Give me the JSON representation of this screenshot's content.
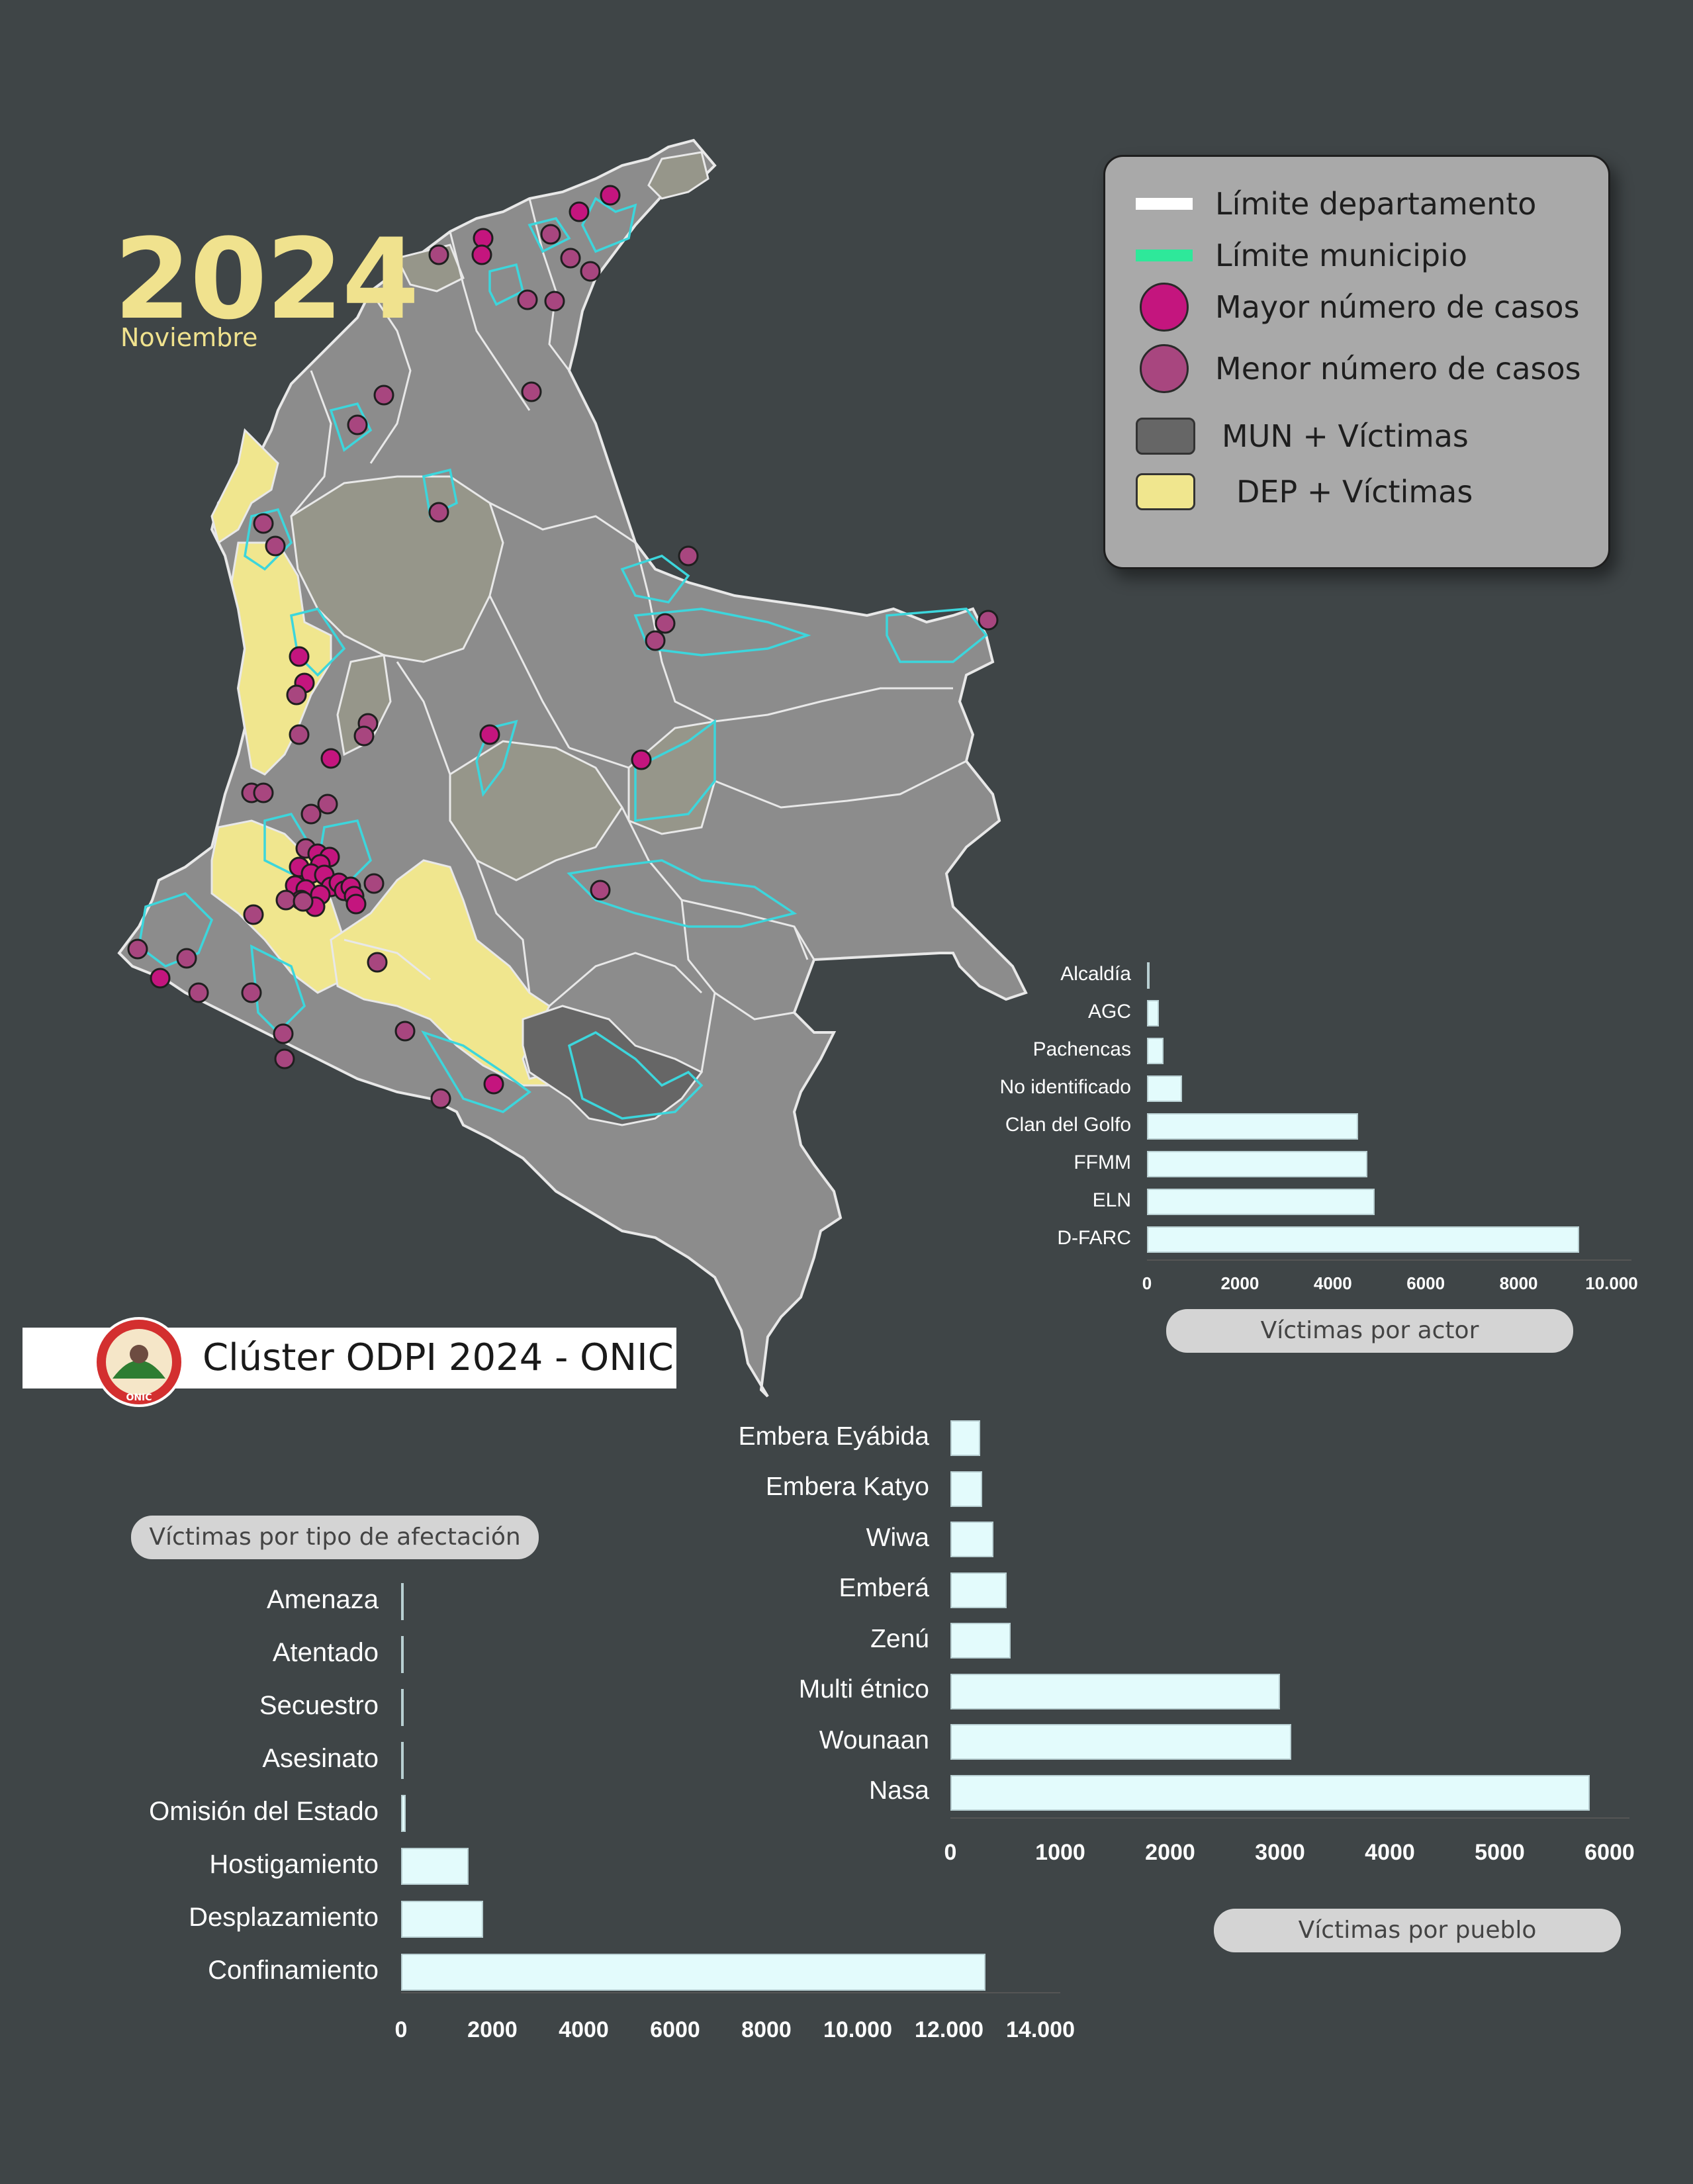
{
  "header": {
    "year": "2024",
    "month": "Noviembre"
  },
  "legend": {
    "items": [
      {
        "label": "Límite departamento",
        "color": "#ffffff",
        "kind": "line"
      },
      {
        "label": "Límite municipio",
        "color": "#2ee89a",
        "kind": "line"
      },
      {
        "label": "Mayor número de casos",
        "color": "#c4157e",
        "kind": "dot"
      },
      {
        "label": "Menor número de casos",
        "color": "#a8467f",
        "kind": "dot"
      },
      {
        "label": "MUN + Víctimas",
        "color": "#666666",
        "kind": "box"
      },
      {
        "label": "DEP + Víctimas",
        "color": "#f0e68e",
        "kind": "box"
      }
    ]
  },
  "colors": {
    "background": "#3f4547",
    "department_fill": "#8c8c8c",
    "highlight_dep": "#f0e68e",
    "highlight_mun": "#9a9a8a",
    "municipio_line": "#3cd6dc",
    "bar_fill": "#e3fbfc"
  },
  "brand": {
    "title": "Clúster ODPI 2024 - ONIC",
    "logo_text": "ONIC"
  },
  "chart_data": [
    {
      "type": "bar",
      "orientation": "horizontal",
      "caption": "Víctimas por actor",
      "categories": [
        "Alcaldía",
        "AGC",
        "Pachencas",
        "No identificado",
        "Clan del Golfo",
        "FFMM",
        "ELN",
        "D-FARC"
      ],
      "values": [
        60,
        250,
        350,
        750,
        4550,
        4750,
        4900,
        9300
      ],
      "xlim": [
        0,
        10000
      ],
      "xticks": [
        "0",
        "2000",
        "4000",
        "6000",
        "8000",
        "10.000"
      ]
    },
    {
      "type": "bar",
      "orientation": "horizontal",
      "caption": "Víctimas por pueblo",
      "categories": [
        "Embera Eyábida",
        "Embera Katyo",
        "Wiwa",
        "Emberá",
        "Zenú",
        "Multi étnico",
        "Wounaan",
        "Nasa"
      ],
      "values": [
        270,
        290,
        390,
        510,
        550,
        3000,
        3100,
        5820
      ],
      "xlim": [
        0,
        6000
      ],
      "xticks": [
        "0",
        "1000",
        "2000",
        "3000",
        "4000",
        "5000",
        "6000"
      ]
    },
    {
      "type": "bar",
      "orientation": "horizontal",
      "caption": "Víctimas por tipo de afectación",
      "categories": [
        "Amenaza",
        "Atentado",
        "Secuestro",
        "Asesinato",
        "Omisión del Estado",
        "Hostigamiento",
        "Desplazamiento",
        "Confinamiento"
      ],
      "values": [
        20,
        25,
        40,
        60,
        100,
        1480,
        1800,
        12800
      ],
      "xlim": [
        0,
        14000
      ],
      "xticks": [
        "0",
        "2000",
        "4000",
        "6000",
        "8000",
        "10.000",
        "12.000",
        "14.000"
      ]
    }
  ]
}
